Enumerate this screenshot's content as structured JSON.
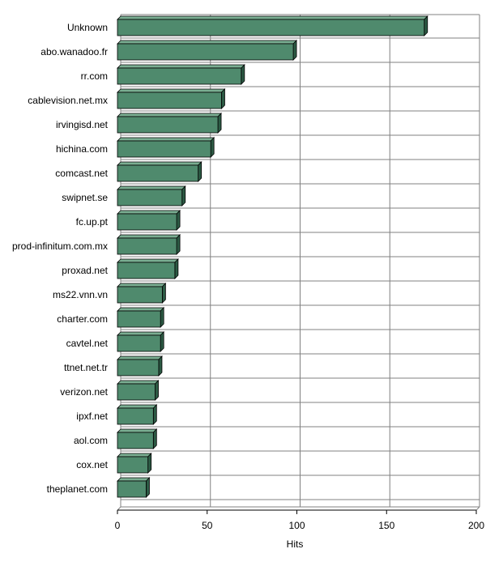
{
  "chart_data": {
    "type": "bar",
    "orientation": "horizontal",
    "style": "3d",
    "categories": [
      "Unknown",
      "abo.wanadoo.fr",
      "rr.com",
      "cablevision.net.mx",
      "irvingisd.net",
      "hichina.com",
      "comcast.net",
      "swipnet.se",
      "fc.up.pt",
      "prod-infinitum.com.mx",
      "proxad.net",
      "ms22.vnn.vn",
      "charter.com",
      "cavtel.net",
      "ttnet.net.tr",
      "verizon.net",
      "ipxf.net",
      "aol.com",
      "cox.net",
      "theplanet.com"
    ],
    "values": [
      171,
      98,
      69,
      58,
      56,
      52,
      45,
      36,
      33,
      33,
      32,
      25,
      24,
      24,
      23,
      21,
      20,
      20,
      17,
      16
    ],
    "xlabel": "Hits",
    "ylabel": "",
    "xlim": [
      0,
      200
    ],
    "xticks": [
      "0",
      "50",
      "100",
      "150",
      "200"
    ],
    "grid": true,
    "colors": {
      "bar_front": "#4f8a6d",
      "bar_side": "#2c5a44",
      "bar_top": "#7aae92",
      "bar_outline": "#000000",
      "grid": "#808080"
    }
  }
}
